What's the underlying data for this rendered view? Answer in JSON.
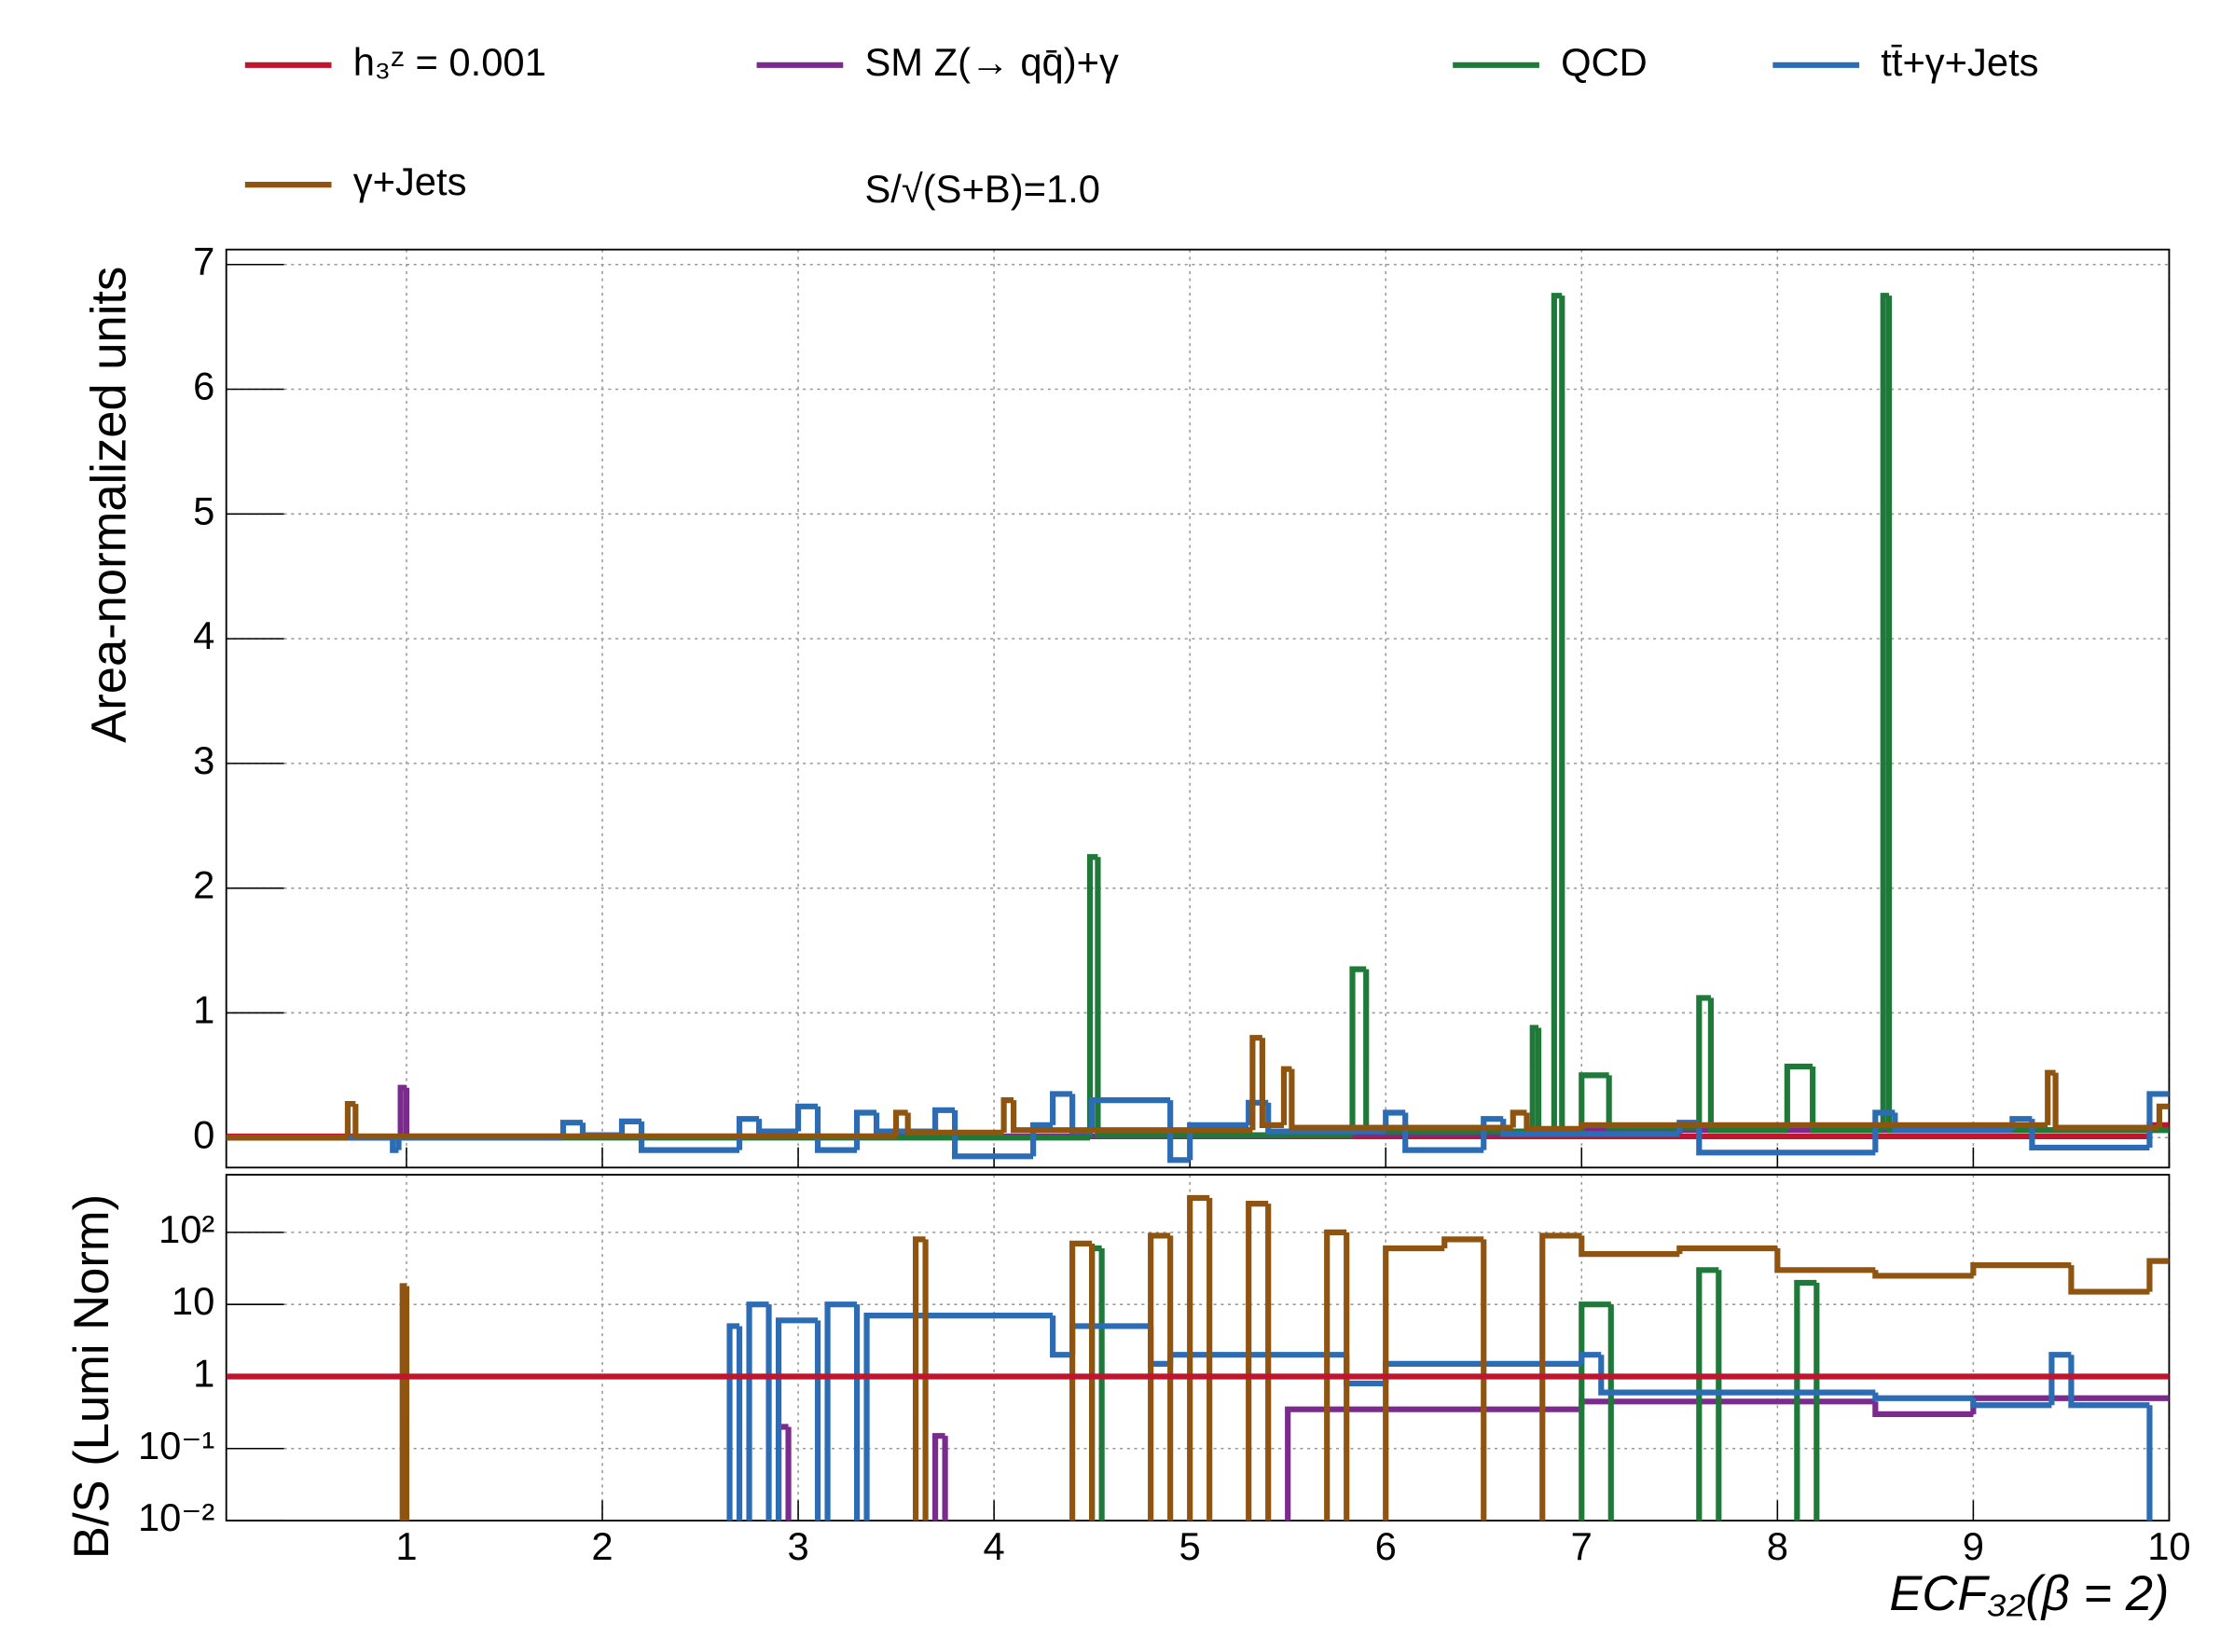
{
  "chart_data": [
    {
      "type": "step",
      "ylabel": "Area-normalized units",
      "annotation": "S/√(S+B)=1.0",
      "xlim": [
        0.08,
        10
      ],
      "xticks": [
        1,
        2,
        3,
        4,
        5,
        6,
        7,
        8,
        9,
        10
      ],
      "ylim": [
        -0.24,
        7.12
      ],
      "yticks": [
        0,
        1,
        2,
        3,
        4,
        5,
        6,
        7
      ],
      "grid": true,
      "series": [
        {
          "name": "h₃ᶻ = 0.001",
          "color": "#c0152f",
          "bins": [
            0.08,
            9.9,
            10
          ],
          "values": [
            0.01,
            0.1
          ]
        },
        {
          "name": "SM Z(→ qq̄)+γ",
          "color": "#7b2a8e",
          "bins": [
            0.08,
            0.97,
            1.0,
            5.5,
            7.0,
            10
          ],
          "values": [
            0,
            0.4,
            0.01,
            0.03,
            0.06
          ]
        },
        {
          "name": "QCD",
          "color": "#1f7a3a",
          "bins": [
            0.08,
            4.49,
            4.53,
            5.83,
            5.9,
            6.75,
            6.78,
            6.86,
            6.9,
            7.0,
            7.14,
            7.6,
            7.66,
            8.05,
            8.18,
            8.54,
            8.57,
            10
          ],
          "values": [
            0,
            2.25,
            0.02,
            1.35,
            0.05,
            0.88,
            0.05,
            6.75,
            0.05,
            0.5,
            0.08,
            1.12,
            0.06,
            0.57,
            0.06,
            6.75,
            0.06
          ]
        },
        {
          "name": "tt̄+γ+Jets",
          "color": "#2b6cb5",
          "bins": [
            0.08,
            0.93,
            0.96,
            1.8,
            1.9,
            2.1,
            2.2,
            2.7,
            2.8,
            3.0,
            3.1,
            3.3,
            3.4,
            3.7,
            3.8,
            4.2,
            4.3,
            4.4,
            4.5,
            4.9,
            5.0,
            5.3,
            5.4,
            6.0,
            6.1,
            6.5,
            6.6,
            7.5,
            7.6,
            8.5,
            8.6,
            9.2,
            9.3,
            9.9,
            10
          ],
          "values": [
            0,
            -0.1,
            0,
            0.12,
            0.02,
            0.13,
            -0.1,
            0.15,
            0.05,
            0.25,
            -0.1,
            0.2,
            0.05,
            0.22,
            -0.15,
            0.1,
            0.35,
            0.05,
            0.3,
            -0.18,
            0.1,
            0.28,
            0.05,
            0.2,
            -0.1,
            0.15,
            0.03,
            0.12,
            -0.12,
            0.2,
            0.06,
            0.15,
            -0.08,
            0.35
          ]
        },
        {
          "name": "γ+Jets",
          "color": "#8e5410",
          "bins": [
            0.08,
            0.7,
            0.74,
            3.5,
            3.56,
            4.05,
            4.1,
            5.32,
            5.37,
            5.48,
            5.52,
            6.65,
            6.72,
            7.0,
            9.38,
            9.42,
            9.95,
            10
          ],
          "values": [
            0,
            0.27,
            0.01,
            0.2,
            0.04,
            0.3,
            0.06,
            0.8,
            0.1,
            0.55,
            0.08,
            0.2,
            0.07,
            0.1,
            0.52,
            0.08,
            0.25
          ]
        }
      ]
    },
    {
      "type": "step",
      "ylabel": "B/S (Lumi Norm)",
      "xlabel": "ECF₃₂(β = 2)",
      "xlim": [
        0.08,
        10
      ],
      "xticks": [
        1,
        2,
        3,
        4,
        5,
        6,
        7,
        8,
        9,
        10
      ],
      "ylim": [
        0.01,
        630
      ],
      "log": true,
      "yticks": [
        {
          "value": 100,
          "label": "10²"
        },
        10,
        1,
        {
          "value": 0.1,
          "label": "10⁻¹"
        },
        {
          "value": 0.01,
          "label": "10⁻²"
        }
      ],
      "grid": true,
      "series": [
        {
          "color": "#7b2a8e",
          "bins": [
            0.08,
            2.9,
            2.95,
            3.7,
            3.75,
            5.5,
            7.0,
            8.5,
            9.0,
            10
          ],
          "values": [
            0.001,
            0.2,
            0.001,
            0.15,
            0.001,
            0.35,
            0.45,
            0.3,
            0.5
          ]
        },
        {
          "color": "#1f7a3a",
          "bins": [
            0.08,
            4.5,
            4.55,
            7.0,
            7.15,
            7.6,
            7.7,
            8.1,
            8.2,
            10
          ],
          "values": [
            0.001,
            60,
            0.001,
            10,
            0.001,
            30,
            0.001,
            20,
            0.001
          ]
        },
        {
          "color": "#2b6cb5",
          "bins": [
            0.08,
            2.65,
            2.7,
            2.75,
            2.85,
            2.9,
            3.1,
            3.15,
            3.3,
            3.35,
            4.3,
            4.4,
            4.8,
            4.9,
            5.8,
            6.0,
            7.0,
            7.1,
            8.5,
            9.0,
            9.4,
            9.5,
            9.9,
            10
          ],
          "values": [
            0.001,
            5,
            0.001,
            10,
            0.001,
            6,
            0.001,
            10,
            0.001,
            7,
            2,
            5,
            1.5,
            2,
            0.8,
            1.5,
            2,
            0.6,
            0.5,
            0.4,
            2,
            0.4,
            0.001
          ]
        },
        {
          "color": "#8e5410",
          "bins": [
            0.08,
            0.98,
            1.0,
            3.6,
            3.65,
            4.4,
            4.5,
            4.8,
            4.9,
            5.0,
            5.1,
            5.3,
            5.4,
            5.7,
            5.8,
            6.0,
            6.3,
            6.5,
            6.8,
            7.0,
            7.5,
            8.0,
            8.5,
            9.0,
            9.5,
            9.9,
            10
          ],
          "values": [
            0.001,
            18,
            0.001,
            80,
            0.001,
            70,
            0.001,
            90,
            0.001,
            300,
            0.001,
            250,
            0.001,
            100,
            0.001,
            60,
            80,
            0.001,
            90,
            50,
            60,
            30,
            25,
            35,
            15,
            40
          ]
        },
        {
          "color": "#c0152f",
          "bins": [
            0.08,
            10
          ],
          "values": [
            1
          ]
        }
      ]
    }
  ]
}
